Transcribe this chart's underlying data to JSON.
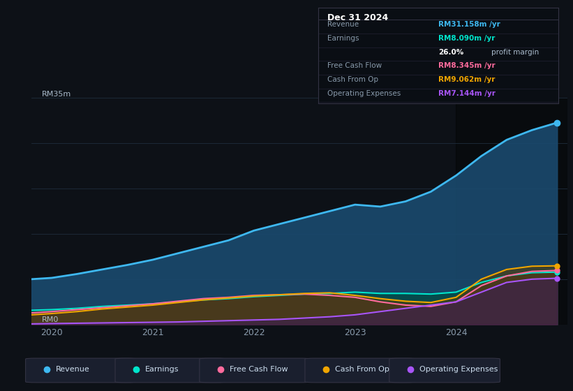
{
  "bg_color": "#0d1117",
  "chart_bg": "#0d1b2a",
  "shaded_region_start": 2024.0,
  "ylim": [
    0,
    35
  ],
  "xlim": [
    2019.8,
    2025.1
  ],
  "ylabel_text": "RM35m",
  "ylabel0_text": "RM0",
  "x_ticks": [
    2020,
    2021,
    2022,
    2023,
    2024
  ],
  "grid_color": "#1e2d3d",
  "revenue_color": "#3eb8f0",
  "revenue_fill": "#1a4a6e",
  "earnings_color": "#00e5cc",
  "earnings_fill": "#004d44",
  "fcf_color": "#ff6b9d",
  "fcf_fill": "#5a2233",
  "cashfromop_color": "#f0a500",
  "cashfromop_fill": "#5a3e00",
  "opex_color": "#a855f7",
  "opex_fill": "#3b1a5a",
  "revenue_x": [
    2019.8,
    2020.0,
    2020.25,
    2020.5,
    2020.75,
    2021.0,
    2021.25,
    2021.5,
    2021.75,
    2022.0,
    2022.25,
    2022.5,
    2022.75,
    2023.0,
    2023.25,
    2023.5,
    2023.75,
    2024.0,
    2024.25,
    2024.5,
    2024.75,
    2025.0
  ],
  "revenue_y": [
    7.0,
    7.2,
    7.8,
    8.5,
    9.2,
    10.0,
    11.0,
    12.0,
    13.0,
    14.5,
    15.5,
    16.5,
    17.5,
    18.5,
    18.2,
    19.0,
    20.5,
    23.0,
    26.0,
    28.5,
    30.0,
    31.158
  ],
  "earnings_x": [
    2019.8,
    2020.0,
    2020.25,
    2020.5,
    2020.75,
    2021.0,
    2021.25,
    2021.5,
    2021.75,
    2022.0,
    2022.25,
    2022.5,
    2022.75,
    2023.0,
    2023.25,
    2023.5,
    2023.75,
    2024.0,
    2024.25,
    2024.5,
    2024.75,
    2025.0
  ],
  "earnings_y": [
    2.2,
    2.3,
    2.5,
    2.8,
    3.0,
    3.2,
    3.5,
    3.8,
    4.0,
    4.3,
    4.5,
    4.7,
    4.8,
    5.0,
    4.8,
    4.8,
    4.7,
    5.0,
    6.5,
    7.5,
    8.0,
    8.09
  ],
  "fcf_x": [
    2019.8,
    2020.0,
    2020.25,
    2020.5,
    2020.75,
    2021.0,
    2021.25,
    2021.5,
    2021.75,
    2022.0,
    2022.25,
    2022.5,
    2022.75,
    2023.0,
    2023.25,
    2023.5,
    2023.75,
    2024.0,
    2024.25,
    2024.5,
    2024.75,
    2025.0
  ],
  "fcf_y": [
    1.8,
    2.0,
    2.3,
    2.6,
    2.9,
    3.2,
    3.6,
    4.0,
    4.2,
    4.5,
    4.6,
    4.7,
    4.5,
    4.2,
    3.5,
    3.0,
    2.8,
    3.5,
    6.0,
    7.5,
    8.2,
    8.345
  ],
  "cashfromop_x": [
    2019.8,
    2020.0,
    2020.25,
    2020.5,
    2020.75,
    2021.0,
    2021.25,
    2021.5,
    2021.75,
    2022.0,
    2022.25,
    2022.5,
    2022.75,
    2023.0,
    2023.25,
    2023.5,
    2023.75,
    2024.0,
    2024.25,
    2024.5,
    2024.75,
    2025.0
  ],
  "cashfromop_y": [
    1.5,
    1.7,
    2.0,
    2.4,
    2.7,
    3.0,
    3.4,
    3.8,
    4.1,
    4.4,
    4.6,
    4.8,
    4.9,
    4.5,
    4.0,
    3.6,
    3.4,
    4.2,
    7.0,
    8.5,
    9.0,
    9.062
  ],
  "opex_x": [
    2019.8,
    2020.0,
    2020.25,
    2020.5,
    2020.75,
    2021.0,
    2021.25,
    2021.5,
    2021.75,
    2022.0,
    2022.25,
    2022.5,
    2022.75,
    2023.0,
    2023.25,
    2023.5,
    2023.75,
    2024.0,
    2024.25,
    2024.5,
    2024.75,
    2025.0
  ],
  "opex_y": [
    0.1,
    0.15,
    0.2,
    0.25,
    0.3,
    0.35,
    0.4,
    0.5,
    0.6,
    0.7,
    0.8,
    1.0,
    1.2,
    1.5,
    2.0,
    2.5,
    3.0,
    3.5,
    5.0,
    6.5,
    7.0,
    7.144
  ],
  "tooltip_date": "Dec 31 2024",
  "tooltip_rows": [
    {
      "label": "Revenue",
      "value": "RM31.158m /yr",
      "note": "",
      "color": "#3eb8f0"
    },
    {
      "label": "Earnings",
      "value": "RM8.090m /yr",
      "note": "",
      "color": "#00e5cc"
    },
    {
      "label": "",
      "value": "26.0%",
      "note": "profit margin",
      "color": "#ffffff"
    },
    {
      "label": "Free Cash Flow",
      "value": "RM8.345m /yr",
      "note": "",
      "color": "#ff6b9d"
    },
    {
      "label": "Cash From Op",
      "value": "RM9.062m /yr",
      "note": "",
      "color": "#f0a500"
    },
    {
      "label": "Operating Expenses",
      "value": "RM7.144m /yr",
      "note": "",
      "color": "#a855f7"
    }
  ],
  "legend": [
    {
      "label": "Revenue",
      "color": "#3eb8f0"
    },
    {
      "label": "Earnings",
      "color": "#00e5cc"
    },
    {
      "label": "Free Cash Flow",
      "color": "#ff6b9d"
    },
    {
      "label": "Cash From Op",
      "color": "#f0a500"
    },
    {
      "label": "Operating Expenses",
      "color": "#a855f7"
    }
  ]
}
